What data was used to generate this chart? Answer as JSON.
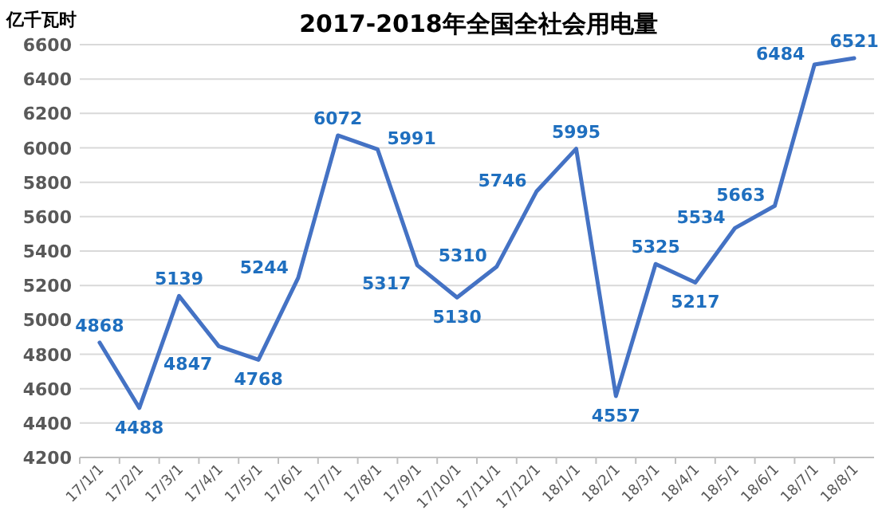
{
  "chart_data": {
    "type": "line",
    "title": "2017-2018年全国全社会用电量",
    "ylabel": "亿千瓦时",
    "categories": [
      "17/1/1",
      "17/2/1",
      "17/3/1",
      "17/4/1",
      "17/5/1",
      "17/6/1",
      "17/7/1",
      "17/8/1",
      "17/9/1",
      "17/10/1",
      "17/11/1",
      "17/12/1",
      "18/1/1",
      "18/2/1",
      "18/3/1",
      "18/4/1",
      "18/5/1",
      "18/6/1",
      "18/7/1",
      "18/8/1"
    ],
    "series": [
      {
        "color": "#4472c4",
        "values": [
          4868,
          4488,
          5139,
          4847,
          4768,
          5244,
          6072,
          5991,
          5317,
          5130,
          5310,
          5746,
          5995,
          4557,
          5325,
          5217,
          5534,
          5663,
          6484,
          6521
        ]
      }
    ],
    "ylim": [
      4200,
      6600
    ],
    "yticks": [
      4200,
      4400,
      4600,
      4800,
      5000,
      5200,
      5400,
      5600,
      5800,
      6000,
      6200,
      6400,
      6600
    ],
    "grid": "y",
    "data_labels": true,
    "marker": "none",
    "line_style": "solid"
  }
}
